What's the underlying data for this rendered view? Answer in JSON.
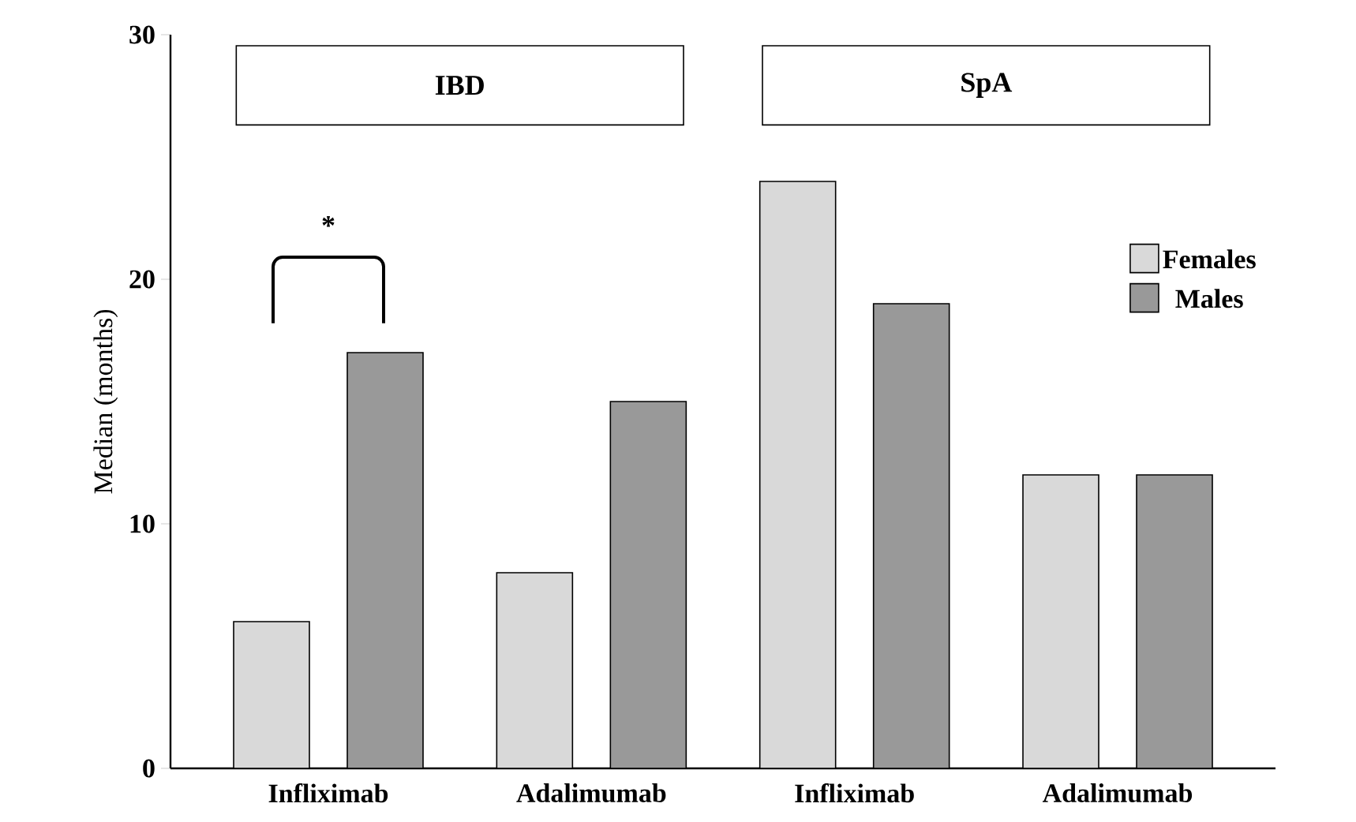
{
  "chart_data": {
    "type": "bar",
    "ylabel": "Median (months)",
    "categories": [
      "Infliximab",
      "Adalimumab",
      "Infliximab",
      "Adalimumab"
    ],
    "series": [
      {
        "name": "Females",
        "color": "#d9d9d9",
        "values": [
          6,
          8,
          24,
          12
        ]
      },
      {
        "name": "Males",
        "color": "#999999",
        "values": [
          17,
          15,
          19,
          12
        ]
      }
    ],
    "ylim": [
      0,
      30
    ],
    "yticks": [
      0,
      10,
      20,
      30
    ],
    "annotations": [
      "IBD",
      "SpA",
      "*"
    ],
    "legend": "right",
    "grid": false
  }
}
